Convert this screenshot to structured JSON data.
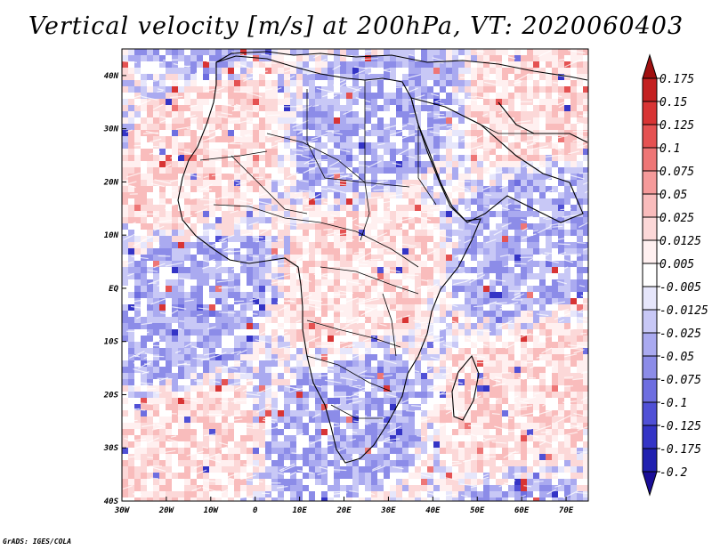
{
  "title": "Vertical velocity [m/s] at 200hPa, VT: 2020060403",
  "credit": "GrADS: IGES/COLA",
  "map": {
    "lon_range": [
      -30,
      75
    ],
    "lat_range": [
      -40,
      45
    ],
    "lon_ticks": [
      {
        "value": -30,
        "label": "30W"
      },
      {
        "value": -20,
        "label": "20W"
      },
      {
        "value": -10,
        "label": "10W"
      },
      {
        "value": 0,
        "label": "0"
      },
      {
        "value": 10,
        "label": "10E"
      },
      {
        "value": 20,
        "label": "20E"
      },
      {
        "value": 30,
        "label": "30E"
      },
      {
        "value": 40,
        "label": "40E"
      },
      {
        "value": 50,
        "label": "50E"
      },
      {
        "value": 60,
        "label": "60E"
      },
      {
        "value": 70,
        "label": "70E"
      }
    ],
    "lat_ticks": [
      {
        "value": 40,
        "label": "40N"
      },
      {
        "value": 30,
        "label": "30N"
      },
      {
        "value": 20,
        "label": "20N"
      },
      {
        "value": 10,
        "label": "10N"
      },
      {
        "value": 0,
        "label": "EQ"
      },
      {
        "value": -10,
        "label": "10S"
      },
      {
        "value": -20,
        "label": "20S"
      },
      {
        "value": -30,
        "label": "30S"
      },
      {
        "value": -40,
        "label": "40S"
      }
    ]
  },
  "colorbar": {
    "labels": [
      "0.175",
      "0.15",
      "0.125",
      "0.1",
      "0.075",
      "0.05",
      "0.025",
      "0.0125",
      "0.005",
      "-0.005",
      "-0.0125",
      "-0.025",
      "-0.05",
      "-0.075",
      "-0.1",
      "-0.125",
      "-0.175",
      "-0.2"
    ],
    "colors": [
      "#a01010",
      "#c42020",
      "#d83434",
      "#e55252",
      "#ee7676",
      "#f59a9a",
      "#f9bcbc",
      "#fcd8d8",
      "#fff0f0",
      "#ffffff",
      "#e6e6fb",
      "#c8c8f6",
      "#aaaaf0",
      "#8c8ce8",
      "#6e6ee0",
      "#5050d6",
      "#3434c6",
      "#2020b0",
      "#1a0e98"
    ]
  }
}
